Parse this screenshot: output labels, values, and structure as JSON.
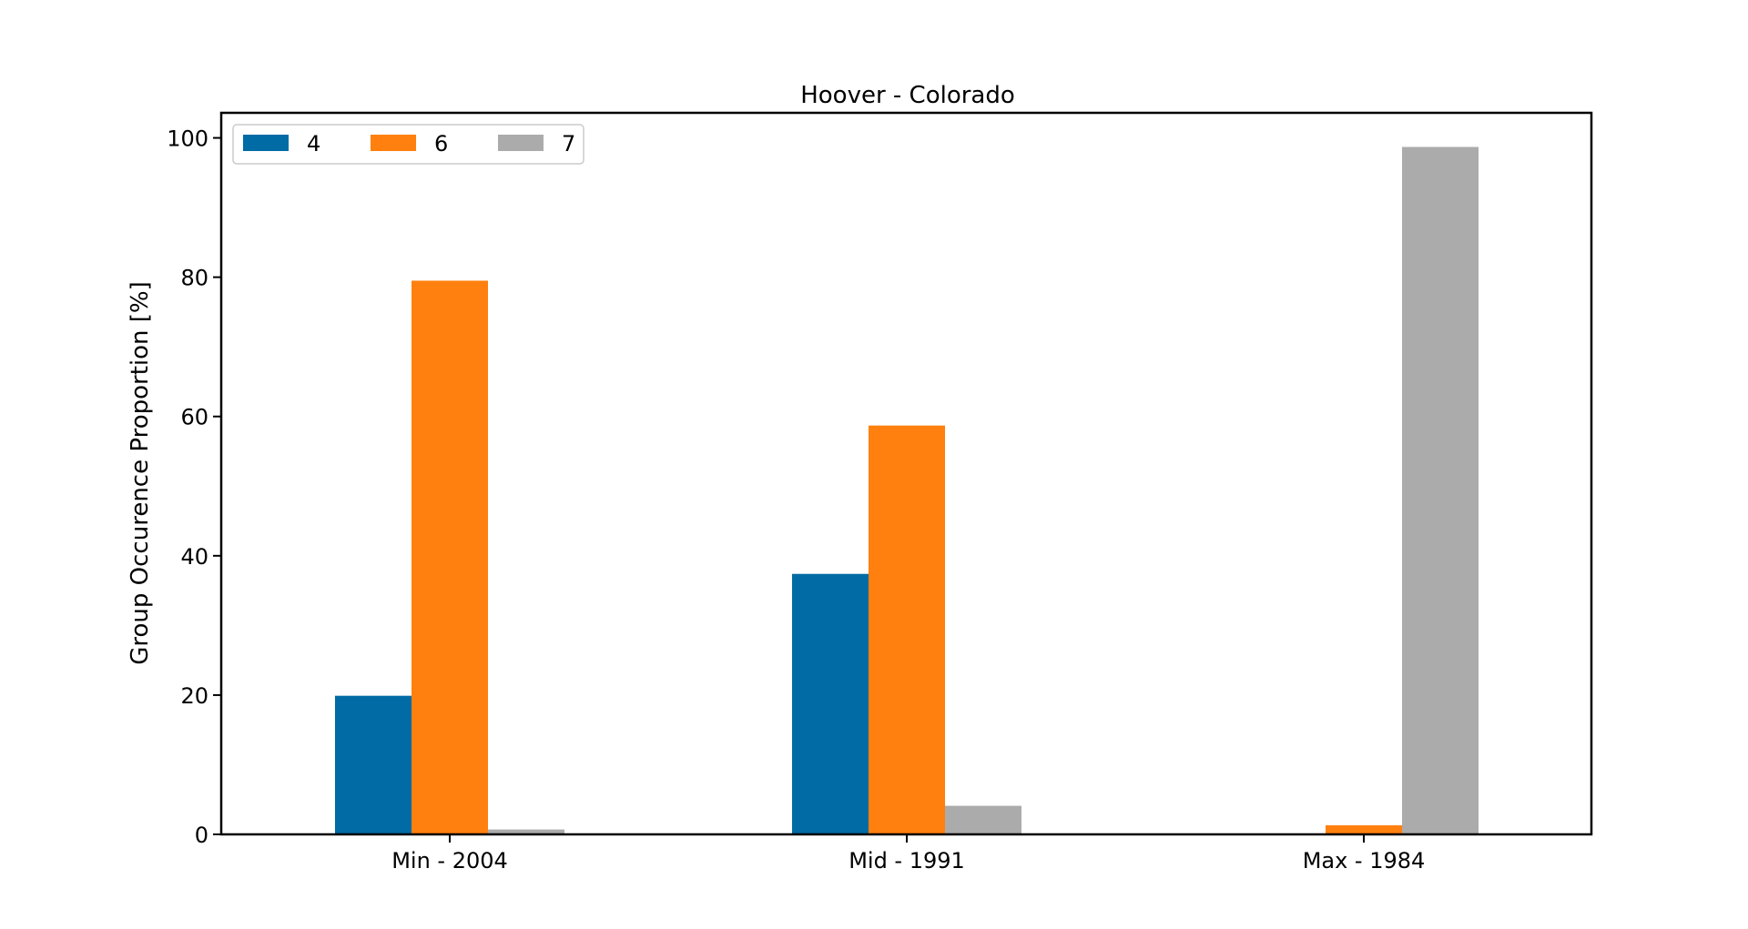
{
  "chart_data": {
    "type": "bar",
    "title": "Hoover - Colorado",
    "xlabel": "",
    "ylabel": "Group Occurence Proportion [%]",
    "categories": [
      "Min - 2004",
      "Mid - 1991",
      "Max - 1984"
    ],
    "series": [
      {
        "name": "4",
        "color": "#006ba4",
        "values": [
          19.9,
          37.4,
          0
        ]
      },
      {
        "name": "6",
        "color": "#ff800e",
        "values": [
          79.5,
          58.7,
          1.3
        ]
      },
      {
        "name": "7",
        "color": "#ababab",
        "values": [
          0.7,
          4.1,
          98.7
        ]
      }
    ],
    "ylim": [
      0,
      103.6
    ],
    "yticks": [
      0,
      20,
      40,
      60,
      80,
      100
    ],
    "grid": false,
    "legend_position": "top-left"
  }
}
